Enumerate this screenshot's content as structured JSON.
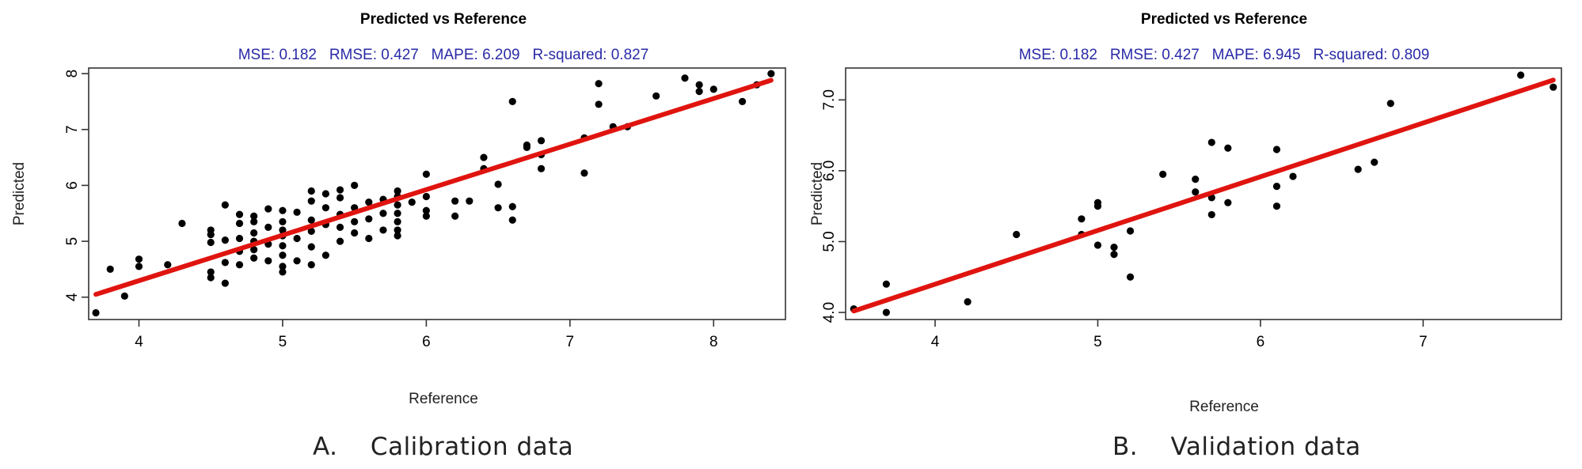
{
  "chart_data": [
    {
      "type": "scatter",
      "title": "Predicted vs Reference",
      "subtitle": "MSE: 0.182   RMSE: 0.427   MAPE: 6.209   R-squared: 0.827",
      "xlabel": "Reference",
      "ylabel": "Predicted",
      "caption": "A.    Calibration data",
      "xlim": [
        3.65,
        8.5
      ],
      "ylim": [
        3.6,
        8.1
      ],
      "xticks": [
        "4",
        "5",
        "6",
        "7",
        "8"
      ],
      "yticks": [
        "4",
        "5",
        "6",
        "7",
        "8"
      ],
      "xtick_values": [
        4,
        5,
        6,
        7,
        8
      ],
      "ytick_values": [
        4,
        5,
        6,
        7,
        8
      ],
      "fit_line": {
        "x": [
          3.7,
          8.4
        ],
        "y": [
          4.05,
          7.88
        ],
        "color": "#e0140f"
      },
      "points": [
        [
          3.7,
          3.72
        ],
        [
          3.8,
          4.5
        ],
        [
          3.9,
          4.02
        ],
        [
          4.0,
          4.55
        ],
        [
          4.0,
          4.68
        ],
        [
          4.2,
          4.58
        ],
        [
          4.3,
          5.32
        ],
        [
          4.5,
          4.35
        ],
        [
          4.5,
          4.45
        ],
        [
          4.5,
          4.98
        ],
        [
          4.5,
          5.12
        ],
        [
          4.5,
          5.2
        ],
        [
          4.6,
          4.25
        ],
        [
          4.6,
          4.62
        ],
        [
          4.6,
          5.02
        ],
        [
          4.6,
          5.65
        ],
        [
          4.7,
          4.58
        ],
        [
          4.7,
          4.82
        ],
        [
          4.7,
          5.05
        ],
        [
          4.7,
          5.32
        ],
        [
          4.7,
          5.48
        ],
        [
          4.8,
          4.7
        ],
        [
          4.8,
          4.85
        ],
        [
          4.8,
          5.0
        ],
        [
          4.8,
          5.15
        ],
        [
          4.8,
          5.35
        ],
        [
          4.8,
          5.45
        ],
        [
          4.9,
          4.65
        ],
        [
          4.9,
          4.95
        ],
        [
          4.9,
          5.25
        ],
        [
          4.9,
          5.58
        ],
        [
          5.0,
          4.45
        ],
        [
          5.0,
          4.55
        ],
        [
          5.0,
          4.75
        ],
        [
          5.0,
          4.92
        ],
        [
          5.0,
          5.1
        ],
        [
          5.0,
          5.2
        ],
        [
          5.0,
          5.35
        ],
        [
          5.0,
          5.55
        ],
        [
          5.1,
          4.65
        ],
        [
          5.1,
          5.05
        ],
        [
          5.1,
          5.52
        ],
        [
          5.2,
          4.58
        ],
        [
          5.2,
          4.9
        ],
        [
          5.2,
          5.18
        ],
        [
          5.2,
          5.38
        ],
        [
          5.2,
          5.72
        ],
        [
          5.2,
          5.9
        ],
        [
          5.3,
          4.75
        ],
        [
          5.3,
          5.3
        ],
        [
          5.3,
          5.6
        ],
        [
          5.3,
          5.85
        ],
        [
          5.4,
          5.0
        ],
        [
          5.4,
          5.25
        ],
        [
          5.4,
          5.48
        ],
        [
          5.4,
          5.78
        ],
        [
          5.4,
          5.92
        ],
        [
          5.5,
          5.15
        ],
        [
          5.5,
          5.35
        ],
        [
          5.5,
          5.6
        ],
        [
          5.5,
          6.0
        ],
        [
          5.6,
          5.05
        ],
        [
          5.6,
          5.4
        ],
        [
          5.6,
          5.7
        ],
        [
          5.7,
          5.2
        ],
        [
          5.7,
          5.5
        ],
        [
          5.7,
          5.75
        ],
        [
          5.8,
          5.1
        ],
        [
          5.8,
          5.2
        ],
        [
          5.8,
          5.35
        ],
        [
          5.8,
          5.5
        ],
        [
          5.8,
          5.65
        ],
        [
          5.8,
          5.8
        ],
        [
          5.8,
          5.9
        ],
        [
          5.9,
          5.7
        ],
        [
          6.0,
          5.45
        ],
        [
          6.0,
          5.55
        ],
        [
          6.0,
          5.8
        ],
        [
          6.0,
          6.2
        ],
        [
          6.2,
          5.45
        ],
        [
          6.2,
          5.72
        ],
        [
          6.3,
          5.72
        ],
        [
          6.4,
          6.3
        ],
        [
          6.4,
          6.5
        ],
        [
          6.5,
          5.6
        ],
        [
          6.5,
          6.02
        ],
        [
          6.6,
          5.38
        ],
        [
          6.6,
          5.62
        ],
        [
          6.6,
          7.5
        ],
        [
          6.7,
          6.72
        ],
        [
          6.7,
          6.68
        ],
        [
          6.8,
          6.3
        ],
        [
          6.8,
          6.55
        ],
        [
          6.8,
          6.8
        ],
        [
          7.1,
          6.22
        ],
        [
          7.1,
          6.85
        ],
        [
          7.2,
          7.45
        ],
        [
          7.2,
          7.82
        ],
        [
          7.3,
          7.05
        ],
        [
          7.4,
          7.05
        ],
        [
          7.6,
          7.6
        ],
        [
          7.8,
          7.92
        ],
        [
          7.9,
          7.68
        ],
        [
          7.9,
          7.8
        ],
        [
          8.0,
          7.72
        ],
        [
          8.2,
          7.5
        ],
        [
          8.3,
          7.8
        ],
        [
          8.4,
          8.0
        ]
      ]
    },
    {
      "type": "scatter",
      "title": "Predicted vs Reference",
      "subtitle": "MSE: 0.182   RMSE: 0.427   MAPE: 6.945   R-squared: 0.809",
      "xlabel": "Reference",
      "ylabel": "Predicted",
      "caption": "B.    Validation data",
      "xlim": [
        3.45,
        7.85
      ],
      "ylim": [
        3.9,
        7.45
      ],
      "xticks": [
        "4",
        "5",
        "6",
        "7"
      ],
      "yticks": [
        "4.0",
        "5.0",
        "6.0",
        "7.0"
      ],
      "xtick_values": [
        4,
        5,
        6,
        7
      ],
      "ytick_values": [
        4,
        5,
        6,
        7
      ],
      "fit_line": {
        "x": [
          3.5,
          7.8
        ],
        "y": [
          4.02,
          7.28
        ],
        "color": "#e0140f"
      },
      "points": [
        [
          3.5,
          4.05
        ],
        [
          3.7,
          4.0
        ],
        [
          3.7,
          4.4
        ],
        [
          4.2,
          4.15
        ],
        [
          4.5,
          5.1
        ],
        [
          4.9,
          5.1
        ],
        [
          4.9,
          5.32
        ],
        [
          5.0,
          4.95
        ],
        [
          5.0,
          5.5
        ],
        [
          5.0,
          5.55
        ],
        [
          5.1,
          4.82
        ],
        [
          5.1,
          4.92
        ],
        [
          5.2,
          4.5
        ],
        [
          5.2,
          5.15
        ],
        [
          5.4,
          5.95
        ],
        [
          5.6,
          5.7
        ],
        [
          5.6,
          5.88
        ],
        [
          5.7,
          5.38
        ],
        [
          5.7,
          5.62
        ],
        [
          5.7,
          6.4
        ],
        [
          5.8,
          5.55
        ],
        [
          5.8,
          6.32
        ],
        [
          6.1,
          5.5
        ],
        [
          6.1,
          5.78
        ],
        [
          6.1,
          6.3
        ],
        [
          6.2,
          5.92
        ],
        [
          6.6,
          6.02
        ],
        [
          6.7,
          6.12
        ],
        [
          6.8,
          6.95
        ],
        [
          7.6,
          7.35
        ],
        [
          7.8,
          7.18
        ]
      ]
    }
  ]
}
